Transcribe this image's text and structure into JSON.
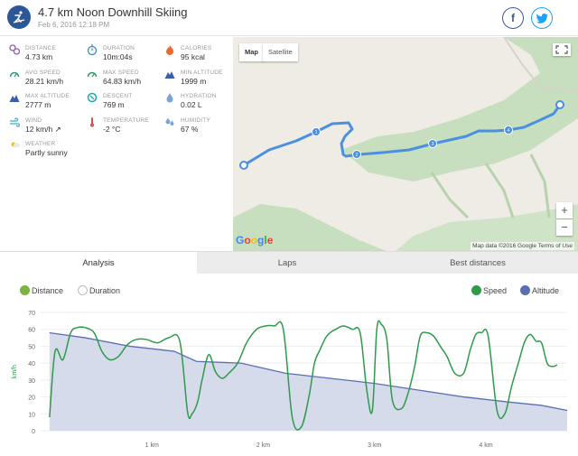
{
  "header": {
    "title": "4.7 km Noon Downhill Skiing",
    "date": "Feb 6, 2016 12:18 PM",
    "share_facebook": "f",
    "share_twitter": "t"
  },
  "stats": [
    {
      "id": "distance",
      "label": "DISTANCE",
      "value": "4.73 km",
      "icon": "distance-icon",
      "color": "#8e5fb0"
    },
    {
      "id": "duration",
      "label": "DURATION",
      "value": "10m:04s",
      "icon": "stopwatch-icon",
      "color": "#2f8ec9"
    },
    {
      "id": "calories",
      "label": "CALORIES",
      "value": "95 kcal",
      "icon": "flame-icon",
      "color": "#e86a2c"
    },
    {
      "id": "avg-speed",
      "label": "AVG SPEED",
      "value": "28.21 km/h",
      "icon": "speedometer-icon",
      "color": "#2d9a6a"
    },
    {
      "id": "max-speed",
      "label": "MAX SPEED",
      "value": "64.83 km/h",
      "icon": "speedometer-icon",
      "color": "#2d9a6a"
    },
    {
      "id": "min-altitude",
      "label": "MIN ALTITUDE",
      "value": "1999 m",
      "icon": "mountain-icon",
      "color": "#3a5fa8"
    },
    {
      "id": "max-altitude",
      "label": "MAX ALTITUDE",
      "value": "2777 m",
      "icon": "mountain-icon",
      "color": "#3a5fa8"
    },
    {
      "id": "descent",
      "label": "DESCENT",
      "value": "769 m",
      "icon": "descent-icon",
      "color": "#20a6b8"
    },
    {
      "id": "hydration",
      "label": "HYDRATION",
      "value": "0.02 L",
      "icon": "water-drop-icon",
      "color": "#7aa3d8"
    },
    {
      "id": "wind",
      "label": "WIND",
      "value": "12 km/h ↗",
      "icon": "wind-icon",
      "color": "#3cb0c8"
    },
    {
      "id": "temperature",
      "label": "TEMPERATURE",
      "value": "-2 °C",
      "icon": "thermometer-icon",
      "color": "#d9534f"
    },
    {
      "id": "humidity",
      "label": "HUMIDITY",
      "value": "67 %",
      "icon": "humidity-icon",
      "color": "#7aa3d8"
    },
    {
      "id": "weather",
      "label": "WEATHER",
      "value": "Partly sunny",
      "icon": "sun-icon",
      "color": "#f0c419"
    }
  ],
  "map": {
    "type_map": "Map",
    "type_satellite": "Satellite",
    "zoom_in": "+",
    "zoom_out": "−",
    "google": "Google",
    "attribution": "Map data ©2016 Google    Terms of Use",
    "lap_markers": [
      "1",
      "2",
      "3",
      "4"
    ]
  },
  "tabs": {
    "analysis": "Analysis",
    "laps": "Laps",
    "best_distances": "Best distances"
  },
  "legend": {
    "distance": "Distance",
    "duration": "Duration",
    "speed": "Speed",
    "altitude": "Altitude"
  },
  "colors": {
    "speed": "#2e9a4a",
    "altitude_line": "#5a6fb0",
    "altitude_fill": "#cfd5e8",
    "route": "#4a90e2"
  },
  "chart_data": {
    "type": "line",
    "ylabel": "km/h",
    "ylim": [
      0,
      70
    ],
    "yticks": [
      0,
      10,
      20,
      30,
      40,
      50,
      60,
      70
    ],
    "xlim": [
      0,
      4.73
    ],
    "xticks": [
      1,
      2,
      3,
      4
    ],
    "xtick_labels": [
      "1 km",
      "2 km",
      "3 km",
      "4 km"
    ],
    "series": [
      {
        "name": "Speed",
        "x": [
          0.08,
          0.13,
          0.2,
          0.27,
          0.33,
          0.4,
          0.48,
          0.55,
          0.62,
          0.7,
          0.78,
          0.86,
          0.95,
          1.05,
          1.15,
          1.25,
          1.32,
          1.36,
          1.41,
          1.45,
          1.51,
          1.57,
          1.63,
          1.69,
          1.77,
          1.85,
          1.94,
          2.02,
          2.1,
          2.18,
          2.26,
          2.34,
          2.41,
          2.46,
          2.51,
          2.56,
          2.6,
          2.65,
          2.72,
          2.8,
          2.87,
          2.93,
          2.98,
          3.02,
          3.06,
          3.11,
          3.16,
          3.24,
          3.3,
          3.36,
          3.41,
          3.47,
          3.53,
          3.59,
          3.65,
          3.72,
          3.8,
          3.86,
          3.91,
          3.96,
          4.02,
          4.1,
          4.17,
          4.23,
          4.3,
          4.35,
          4.4,
          4.45,
          4.5,
          4.55,
          4.6,
          4.64
        ],
        "values": [
          8,
          47,
          42,
          58,
          61,
          61,
          58,
          47,
          42,
          44,
          51,
          54,
          54,
          52,
          55,
          53,
          11,
          10,
          17,
          30,
          45,
          35,
          31,
          34,
          40,
          52,
          60,
          62,
          62,
          60,
          8,
          2,
          20,
          40,
          48,
          55,
          58,
          60,
          62,
          60,
          58,
          24,
          12,
          60,
          63,
          54,
          18,
          13,
          22,
          38,
          56,
          58,
          56,
          50,
          44,
          34,
          34,
          48,
          57,
          58,
          56,
          12,
          10,
          26,
          42,
          53,
          57,
          53,
          52,
          40,
          38,
          39
        ]
      },
      {
        "name": "Altitude",
        "x": [
          0.08,
          0.4,
          0.8,
          1.2,
          1.4,
          1.8,
          2.2,
          2.6,
          3.0,
          3.4,
          3.8,
          4.2,
          4.5,
          4.73
        ],
        "values": [
          58,
          55,
          50,
          47,
          41,
          40,
          34,
          31,
          28,
          24,
          20,
          17,
          15,
          12
        ]
      }
    ]
  }
}
